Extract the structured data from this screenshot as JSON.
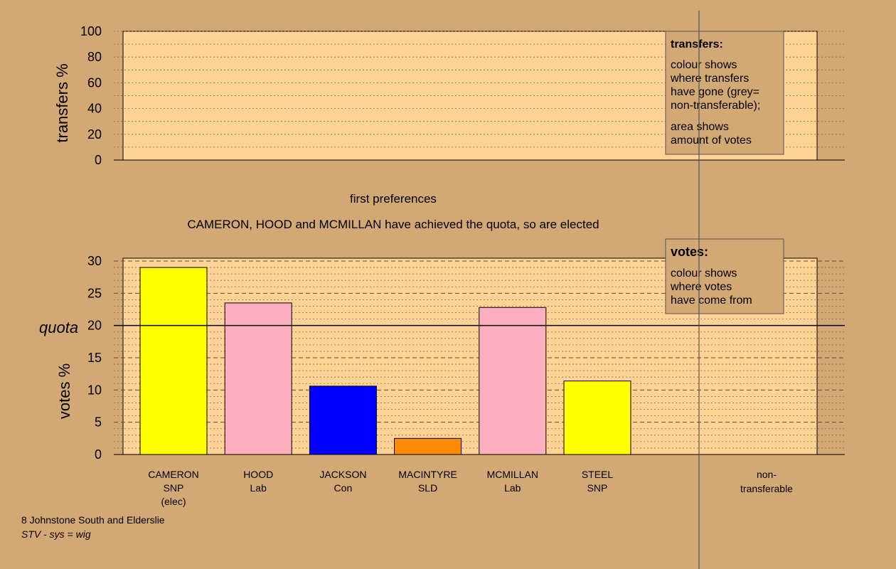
{
  "chart_data": [
    {
      "type": "bar",
      "ylabel": "transfers %",
      "ylim": [
        0,
        100
      ],
      "yticks": [
        0,
        20,
        40,
        60,
        80,
        100
      ],
      "grid": true,
      "values": [],
      "legend": {
        "position": "top-right",
        "title": "transfers:",
        "lines1": [
          "colour shows",
          "where transfers",
          "have gone (grey=",
          "non-transferable);"
        ],
        "lines2": [
          "area shows",
          "amount of votes"
        ]
      }
    },
    {
      "type": "bar",
      "title": "first preferences",
      "subtitle": "CAMERON, HOOD and MCMILLAN have achieved the quota, so are elected",
      "ylabel": "votes %",
      "ylim": [
        0,
        30
      ],
      "yticks": [
        0,
        5,
        10,
        15,
        20,
        25,
        30
      ],
      "grid": true,
      "quota": {
        "label": "quota",
        "value": 20
      },
      "categories": [
        {
          "name": "CAMERON",
          "party": "SNP",
          "note": "(elec)"
        },
        {
          "name": "HOOD",
          "party": "Lab",
          "note": ""
        },
        {
          "name": "JACKSON",
          "party": "Con",
          "note": ""
        },
        {
          "name": "MACINTYRE",
          "party": "SLD",
          "note": ""
        },
        {
          "name": "MCMILLAN",
          "party": "Lab",
          "note": ""
        },
        {
          "name": "STEEL",
          "party": "SNP",
          "note": ""
        }
      ],
      "values": [
        29.0,
        23.5,
        10.6,
        2.5,
        22.8,
        11.4
      ],
      "colors": [
        "#ffff00",
        "#ffb0c0",
        "#0000ff",
        "#ff8c00",
        "#ffb0c0",
        "#ffff00"
      ],
      "nontransferable": {
        "line1": "non-",
        "line2": "transferable"
      },
      "legend": {
        "position": "top-right",
        "title": "votes:",
        "lines": [
          "colour shows",
          "where votes",
          "have come from"
        ]
      }
    }
  ],
  "footer": {
    "ward": "8 Johnstone South and Elderslie",
    "system": "STV - sys = wig"
  }
}
